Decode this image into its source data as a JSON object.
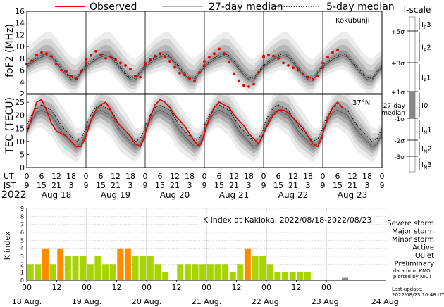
{
  "legend": {
    "observed": "Observed",
    "median27": "27-day median",
    "median5": "5-day median",
    "observed_color": "#e60000"
  },
  "fof2": {
    "ylabel": "foF2 (MHz)",
    "station": "Kokubunji",
    "yticks": [
      "16",
      "14",
      "12",
      "10",
      "8",
      "6",
      "4",
      "2"
    ]
  },
  "tec": {
    "ylabel": "TEC (TECU)",
    "station": "37°N",
    "yticks": [
      "25",
      "20",
      "15",
      "10",
      "5",
      "0"
    ]
  },
  "time_axis": {
    "ut_label": "UT",
    "jst_label": "JST",
    "year": "2022",
    "ut_ticks": [
      "0",
      "6",
      "12",
      "18",
      "0",
      "6",
      "12",
      "18",
      "0",
      "6",
      "12",
      "18",
      "0",
      "6",
      "12",
      "18",
      "0",
      "6",
      "12",
      "18",
      "0",
      "6",
      "12",
      "18",
      "0"
    ],
    "jst_ticks": [
      "9",
      "15",
      "21",
      "3",
      "9",
      "15",
      "21",
      "3",
      "9",
      "15",
      "21",
      "3",
      "9",
      "15",
      "21",
      "3",
      "9",
      "15",
      "21",
      "3",
      "9",
      "15",
      "21",
      "3",
      "9"
    ],
    "dates": [
      "Aug 18",
      "Aug 19",
      "Aug 20",
      "Aug 21",
      "Aug 22",
      "Aug 23"
    ]
  },
  "iscale": {
    "title": "I-scale",
    "sigma_labels": [
      "+5σ",
      "+3σ",
      "+1σ",
      "-1σ",
      "-2σ",
      "-3σ"
    ],
    "median_label_1": "27-day",
    "median_label_2": "median",
    "classes": [
      {
        "main": "I",
        "sub": "P",
        "num": "3"
      },
      {
        "main": "I",
        "sub": "P",
        "num": "2"
      },
      {
        "main": "I",
        "sub": "P",
        "num": "1"
      },
      {
        "main": "I0",
        "sub": "",
        "num": ""
      },
      {
        "main": "I",
        "sub": "N",
        "num": "1"
      },
      {
        "main": "I",
        "sub": "N",
        "num": "2"
      },
      {
        "main": "I",
        "sub": "N",
        "num": "3"
      }
    ]
  },
  "kindex": {
    "title": "K index at Kakioka, 2022/08/18-2022/08/23",
    "ylabel": "K index",
    "yticks": [
      "0",
      "1",
      "2",
      "3",
      "4",
      "5",
      "6",
      "7",
      "8",
      "9"
    ],
    "xhour_labels": [
      "00",
      "12",
      "00",
      "12",
      "00",
      "12",
      "00",
      "12",
      "00",
      "12",
      "00"
    ],
    "xdate_labels": [
      "18 Aug.",
      "19 Aug.",
      "20 Aug.",
      "21 Aug.",
      "22 Aug.",
      "23 Aug.",
      "24 Aug."
    ],
    "legend": [
      {
        "label": "Severe storm",
        "color": "#990099"
      },
      {
        "label": "Major storm",
        "color": "#cc0077"
      },
      {
        "label": "Minor storm",
        "color": "#cc0000"
      },
      {
        "label": "Active",
        "color": "#ff8c00"
      },
      {
        "label": "Quiet",
        "color": "#a8d400"
      },
      {
        "label": "Preliminary",
        "color": "#888888"
      }
    ],
    "source_1": "data from KMO",
    "source_2": "plotted by NICT",
    "update_1": "Last update:",
    "update_2": "2022/08/23 10:48 UT"
  },
  "chart_data": [
    {
      "type": "line",
      "title": "foF2 Kokubunji",
      "xlabel": "UT",
      "ylabel": "foF2 (MHz)",
      "x_unit": "hours since 2022-08-18 00 UT",
      "xlim": [
        0,
        144
      ],
      "ylim": [
        2,
        16
      ],
      "days": [
        {
          "day": "Aug 18",
          "median": [
            6.5,
            7.2,
            7.8,
            8.2,
            8.5,
            8.2,
            7.2,
            6.2,
            5.2,
            4.4,
            4.3,
            5.5,
            6.5
          ],
          "observed": [
            7.0,
            7.6,
            8.6,
            9.0,
            8.8,
            8.3,
            7.0,
            6.0,
            5.8,
            5.0,
            4.5,
            5.8,
            7.2
          ]
        },
        {
          "day": "Aug 19",
          "median": [
            6.5,
            7.2,
            7.8,
            8.2,
            8.5,
            8.2,
            7.2,
            6.2,
            5.2,
            4.4,
            4.3,
            5.5,
            6.5
          ],
          "observed": [
            7.8,
            8.5,
            9.2,
            8.6,
            8.0,
            8.3,
            7.8,
            7.2,
            6.8,
            6.2,
            5.0,
            4.8,
            7.0
          ]
        },
        {
          "day": "Aug 20",
          "median": [
            6.5,
            7.2,
            7.8,
            8.2,
            8.5,
            8.2,
            7.2,
            6.2,
            5.2,
            4.4,
            4.3,
            5.5,
            6.5
          ],
          "observed": [
            7.2,
            7.8,
            8.4,
            8.8,
            8.2,
            7.5,
            6.5,
            5.5,
            5.2,
            4.6,
            4.2,
            5.6,
            6.8
          ]
        },
        {
          "day": "Aug 21",
          "median": [
            6.5,
            7.2,
            7.8,
            8.2,
            8.5,
            8.2,
            7.2,
            6.2,
            5.2,
            4.4,
            4.3,
            5.5,
            6.5
          ],
          "observed": [
            7.5,
            8.2,
            8.8,
            9.6,
            8.8,
            7.4,
            5.4,
            4.2,
            3.4,
            3.2,
            3.6,
            5.6,
            8.4
          ]
        },
        {
          "day": "Aug 22",
          "median": [
            6.5,
            7.2,
            7.8,
            8.2,
            8.5,
            8.2,
            7.2,
            6.2,
            5.2,
            4.4,
            4.3,
            5.5,
            6.5
          ],
          "observed": [
            8.2,
            8.6,
            8.4,
            8.0,
            7.2,
            6.8,
            6.4,
            6.0,
            5.4,
            4.8,
            4.4,
            5.0,
            6.4
          ]
        },
        {
          "day": "Aug 23",
          "median": [
            6.5,
            7.2,
            7.8,
            8.2,
            8.5,
            8.2,
            7.2,
            6.2,
            5.2,
            4.4,
            4.3,
            5.5,
            6.5
          ],
          "observed": [
            7.2,
            8.2,
            9.0,
            9.4,
            null,
            null,
            null,
            null,
            null,
            null,
            null,
            null,
            null
          ]
        }
      ]
    },
    {
      "type": "line",
      "title": "TEC 37°N",
      "xlabel": "UT",
      "ylabel": "TEC (TECU)",
      "x_unit": "hours since 2022-08-18 00 UT",
      "xlim": [
        0,
        144
      ],
      "ylim": [
        0,
        28
      ],
      "days": [
        {
          "day": "Aug 18",
          "median": [
            14,
            18,
            21,
            22,
            21,
            20,
            17,
            14,
            12,
            10,
            8,
            9,
            13
          ],
          "observed": [
            13,
            19,
            25,
            26,
            22,
            17,
            14,
            13,
            12,
            10,
            8,
            8,
            12
          ]
        },
        {
          "day": "Aug 19",
          "median": [
            14,
            18,
            21,
            22,
            21,
            20,
            17,
            14,
            12,
            10,
            8,
            9,
            13
          ],
          "observed": [
            12,
            18,
            22,
            24,
            25,
            22,
            18,
            16,
            14,
            12,
            9,
            8,
            12
          ]
        },
        {
          "day": "Aug 20",
          "median": [
            14,
            18,
            21,
            22,
            21,
            20,
            17,
            14,
            12,
            10,
            8,
            9,
            13
          ],
          "observed": [
            13,
            19,
            24,
            26,
            25,
            23,
            20,
            18,
            16,
            13,
            10,
            8,
            12
          ]
        },
        {
          "day": "Aug 21",
          "median": [
            14,
            18,
            21,
            22,
            21,
            20,
            17,
            14,
            12,
            10,
            8,
            9,
            13
          ],
          "observed": [
            13,
            19,
            23,
            25,
            24,
            23,
            20,
            18,
            16,
            13,
            11,
            9,
            13
          ]
        },
        {
          "day": "Aug 22",
          "median": [
            14,
            18,
            21,
            22,
            21,
            20,
            17,
            14,
            12,
            10,
            8,
            9,
            13
          ],
          "observed": [
            13,
            17,
            20,
            22,
            22,
            21,
            19,
            17,
            15,
            12,
            9,
            8,
            12
          ]
        },
        {
          "day": "Aug 23",
          "median": [
            14,
            18,
            21,
            22,
            21,
            20,
            17,
            14,
            12,
            10,
            8,
            9,
            13
          ],
          "observed": [
            13,
            19,
            23,
            25,
            23,
            null,
            null,
            null,
            null,
            null,
            null,
            null,
            null
          ]
        }
      ]
    },
    {
      "type": "bar",
      "title": "K index at Kakioka, 2022/08/18-2022/08/23",
      "ylabel": "K index",
      "ylim": [
        0,
        9
      ],
      "x_unit": "3-hour intervals from 2022-08-18 00 UT",
      "values": [
        2,
        2,
        4,
        2,
        4,
        3,
        3,
        3,
        2,
        3,
        2,
        2,
        4,
        4,
        3,
        3,
        3,
        2,
        1,
        0,
        2,
        2,
        2,
        2,
        2,
        2,
        2,
        1,
        2,
        4,
        3,
        3,
        2,
        1,
        1,
        1,
        1,
        1,
        0,
        0,
        0,
        0,
        0
      ],
      "preliminary_values": [
        0,
        0,
        0,
        0,
        0,
        0,
        0,
        0,
        0,
        0,
        0,
        0,
        0,
        0,
        0,
        0,
        0,
        0,
        0,
        0,
        0,
        0,
        0,
        0,
        0,
        0,
        0,
        0,
        0,
        0,
        0,
        0,
        0,
        0,
        0,
        0,
        0,
        0,
        0,
        0,
        0,
        0,
        0.3
      ]
    }
  ]
}
